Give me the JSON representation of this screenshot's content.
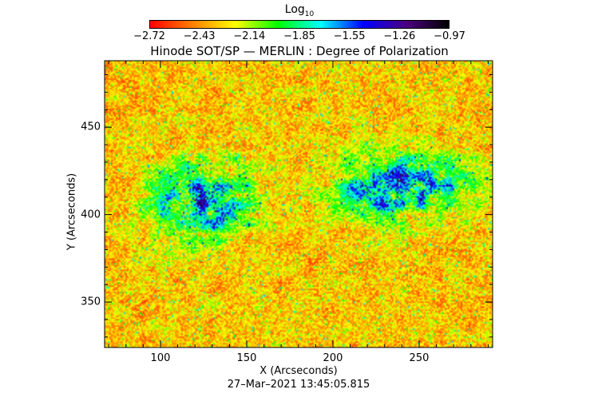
{
  "chart_data": {
    "type": "heatmap",
    "title": "Hinode SOT/SP — MERLIN : Degree of Polarization",
    "xlabel": "X (Arcseconds)",
    "ylabel": "Y (Arcseconds)",
    "timestamp": "27–Mar–2021 13:45:05.815",
    "xlim": [
      67.6,
      292.6
    ],
    "ylim": [
      324,
      488
    ],
    "xticks": [
      "100",
      "150",
      "200",
      "250"
    ],
    "xtick_values": [
      100,
      150,
      200,
      250
    ],
    "yticks": [
      "350",
      "400",
      "450"
    ],
    "ytick_values": [
      350,
      400,
      450
    ],
    "colorbar": {
      "title": "Log",
      "title_sub": "10",
      "range": [
        -2.72,
        -0.97
      ],
      "tick_labels": [
        "−2.72",
        "−2.43",
        "−2.14",
        "−1.85",
        "−1.55",
        "−1.26",
        "−0.97"
      ],
      "colormap": [
        "#ff0000",
        "#ff8000",
        "#ffff00",
        "#00ff00",
        "#00ffff",
        "#0000ff",
        "#4b0082",
        "#000000"
      ]
    },
    "strong_regions": [
      {
        "x": [
          90,
          160
        ],
        "y": [
          380,
          435
        ]
      },
      {
        "x": [
          195,
          285
        ],
        "y": [
          393,
          438
        ]
      }
    ]
  }
}
